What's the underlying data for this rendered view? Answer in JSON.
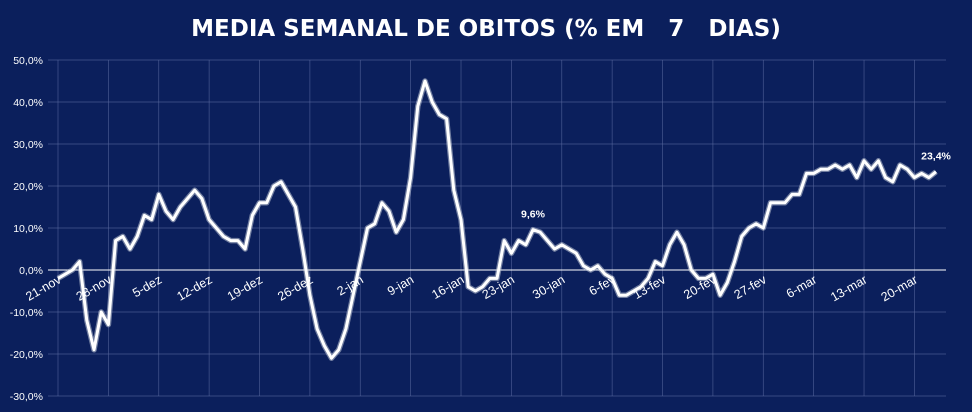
{
  "colors": {
    "background": "#0b1f5c",
    "line": "#ffffff",
    "shadow": "#c7ccd8",
    "grid": "#5a6aa0"
  },
  "chart_data": {
    "type": "line",
    "title": "MEDIA SEMANAL DE OBITOS (% EM   7   DIAS)",
    "xlabel": "",
    "ylabel": "",
    "ylim": [
      -0.3,
      0.5
    ],
    "grid": true,
    "legend": "none",
    "y_ticks": [
      {
        "value": 0.5,
        "label": "50,0%"
      },
      {
        "value": 0.4,
        "label": "40,0%"
      },
      {
        "value": 0.3,
        "label": "30,0%"
      },
      {
        "value": 0.2,
        "label": "20,0%"
      },
      {
        "value": 0.1,
        "label": "10,0%"
      },
      {
        "value": 0.0,
        "label": "0,0%"
      },
      {
        "value": -0.1,
        "label": "-10,0%"
      },
      {
        "value": -0.2,
        "label": "-20,0%"
      },
      {
        "value": -0.3,
        "label": "-30,0%"
      }
    ],
    "x_ticks": [
      {
        "index": 0,
        "label": "21-nov"
      },
      {
        "index": 7,
        "label": "28-nov"
      },
      {
        "index": 14,
        "label": "5-dez"
      },
      {
        "index": 21,
        "label": "12-dez"
      },
      {
        "index": 28,
        "label": "19-dez"
      },
      {
        "index": 35,
        "label": "26-dez"
      },
      {
        "index": 42,
        "label": "2-jan"
      },
      {
        "index": 49,
        "label": "9-jan"
      },
      {
        "index": 56,
        "label": "16-jan"
      },
      {
        "index": 63,
        "label": "23-jan"
      },
      {
        "index": 70,
        "label": "30-jan"
      },
      {
        "index": 77,
        "label": "6-fev"
      },
      {
        "index": 84,
        "label": "13-fev"
      },
      {
        "index": 91,
        "label": "20-fev"
      },
      {
        "index": 98,
        "label": "27-fev"
      },
      {
        "index": 105,
        "label": "6-mar"
      },
      {
        "index": 112,
        "label": "13-mar"
      },
      {
        "index": 119,
        "label": "20-mar"
      }
    ],
    "values": [
      -0.02,
      -0.01,
      0.0,
      0.02,
      -0.12,
      -0.19,
      -0.1,
      -0.13,
      0.07,
      0.08,
      0.05,
      0.08,
      0.13,
      0.12,
      0.18,
      0.14,
      0.12,
      0.15,
      0.17,
      0.19,
      0.17,
      0.12,
      0.1,
      0.08,
      0.07,
      0.07,
      0.05,
      0.13,
      0.16,
      0.16,
      0.2,
      0.21,
      0.18,
      0.15,
      0.05,
      -0.06,
      -0.14,
      -0.18,
      -0.21,
      -0.19,
      -0.14,
      -0.06,
      0.02,
      0.1,
      0.11,
      0.16,
      0.14,
      0.09,
      0.12,
      0.22,
      0.39,
      0.45,
      0.4,
      0.37,
      0.36,
      0.19,
      0.12,
      -0.04,
      -0.05,
      -0.04,
      -0.02,
      -0.02,
      0.07,
      0.04,
      0.07,
      0.06,
      0.096,
      0.09,
      0.07,
      0.05,
      0.06,
      0.05,
      0.04,
      0.01,
      0.0,
      0.01,
      -0.01,
      -0.02,
      -0.06,
      -0.06,
      -0.05,
      -0.04,
      -0.02,
      0.02,
      0.01,
      0.06,
      0.09,
      0.06,
      0.0,
      -0.02,
      -0.02,
      -0.01,
      -0.06,
      -0.03,
      0.02,
      0.08,
      0.1,
      0.11,
      0.1,
      0.16,
      0.16,
      0.16,
      0.18,
      0.18,
      0.23,
      0.23,
      0.24,
      0.24,
      0.25,
      0.24,
      0.25,
      0.22,
      0.26,
      0.24,
      0.26,
      0.22,
      0.21,
      0.25,
      0.24,
      0.22,
      0.23,
      0.22,
      0.234
    ],
    "data_labels": [
      {
        "index": 66,
        "label": "9,6%"
      },
      {
        "index": 122,
        "label": "23,4%"
      }
    ]
  }
}
